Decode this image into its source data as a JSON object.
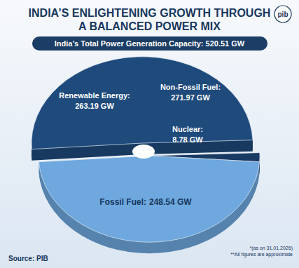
{
  "chart_data": {
    "type": "pie",
    "title": [
      "INDIA’S ENLIGHTENING GROWTH THROUGH",
      "A BALANCED POWER MIX"
    ],
    "subtitle": "India’s Total Power Generation Capacity: 520.51 GW",
    "categories": [
      "Renewable Energy:",
      "Nuclear:",
      "Fossil Fuel:"
    ],
    "values": [
      263.19,
      8.78,
      248.54
    ],
    "value_labels": [
      "263.19 GW",
      "8.78 GW",
      "248.54 GW"
    ],
    "data_labels": true,
    "colors": [
      "#1f4a7c",
      "#193a63",
      "#6ea8de"
    ],
    "annotations": [
      {
        "lines": [
          "Non-Fossil Fuel:",
          "271.97 GW"
        ]
      }
    ],
    "source": "Source: PIB",
    "notes": [
      "*(as on 31.01.2026)",
      "**All figures are approximate"
    ],
    "logo": "pib"
  }
}
